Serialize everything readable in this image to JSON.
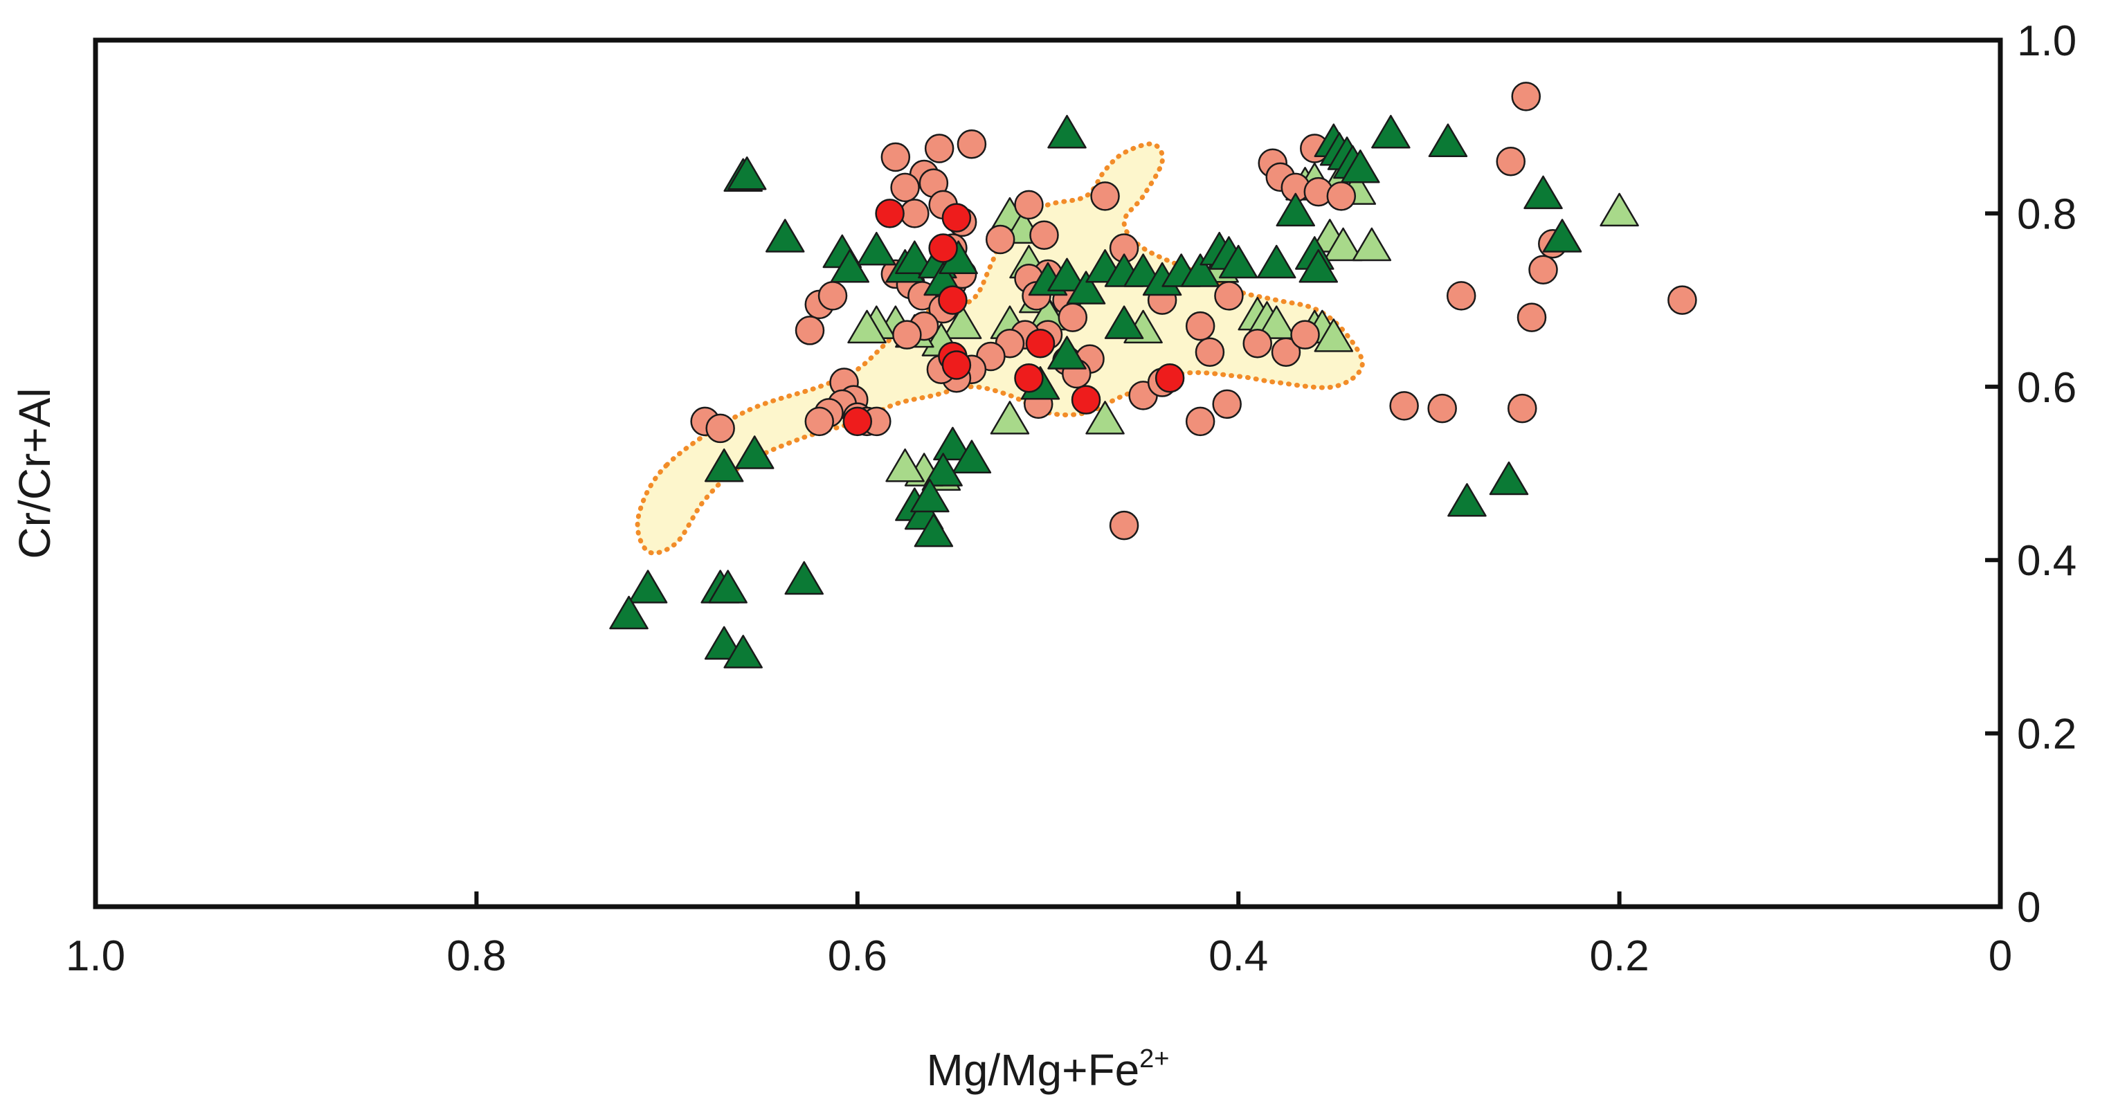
{
  "chart_data": {
    "type": "scatter",
    "title": "",
    "xlabel": {
      "base": "Mg/Mg+Fe",
      "sup": "2+"
    },
    "ylabel": "Cr/Cr+Al",
    "xlim": [
      1.0,
      0.0
    ],
    "ylim": [
      0.0,
      1.0
    ],
    "x_ticks": [
      1.0,
      0.8,
      0.6,
      0.4,
      0.2,
      0.0
    ],
    "x_tick_labels": [
      "1.0",
      "0.8",
      "0.6",
      "0.4",
      "0.2",
      "0"
    ],
    "y_ticks": [
      0.0,
      0.2,
      0.4,
      0.6,
      0.8,
      1.0
    ],
    "y_tick_labels": [
      "0",
      "0.2",
      "0.4",
      "0.6",
      "0.8",
      "1.0"
    ],
    "y_axis_position": "right",
    "grid": false,
    "colors": {
      "field_fill": "#fdf6cc",
      "field_stroke": "#f28c28",
      "dark_triangle": "#0b7a35",
      "light_triangle": "#a8d98a",
      "salmon_circle": "#f0907a",
      "red_circle": "#ee1c1c",
      "marker_stroke": "#1a1a1a",
      "axis": "#111111"
    },
    "field_outline": [
      [
        0.7,
        0.51
      ],
      [
        0.66,
        0.57
      ],
      [
        0.62,
        0.6
      ],
      [
        0.6,
        0.62
      ],
      [
        0.58,
        0.66
      ],
      [
        0.56,
        0.69
      ],
      [
        0.54,
        0.7
      ],
      [
        0.53,
        0.74
      ],
      [
        0.52,
        0.79
      ],
      [
        0.5,
        0.81
      ],
      [
        0.48,
        0.82
      ],
      [
        0.47,
        0.85
      ],
      [
        0.46,
        0.87
      ],
      [
        0.445,
        0.88
      ],
      [
        0.44,
        0.86
      ],
      [
        0.45,
        0.82
      ],
      [
        0.46,
        0.79
      ],
      [
        0.45,
        0.76
      ],
      [
        0.42,
        0.73
      ],
      [
        0.4,
        0.71
      ],
      [
        0.38,
        0.7
      ],
      [
        0.36,
        0.69
      ],
      [
        0.345,
        0.665
      ],
      [
        0.335,
        0.625
      ],
      [
        0.35,
        0.6
      ],
      [
        0.38,
        0.605
      ],
      [
        0.4,
        0.612
      ],
      [
        0.43,
        0.615
      ],
      [
        0.46,
        0.59
      ],
      [
        0.48,
        0.57
      ],
      [
        0.5,
        0.57
      ],
      [
        0.52,
        0.59
      ],
      [
        0.54,
        0.6
      ],
      [
        0.56,
        0.59
      ],
      [
        0.58,
        0.58
      ],
      [
        0.6,
        0.56
      ],
      [
        0.63,
        0.54
      ],
      [
        0.66,
        0.51
      ],
      [
        0.68,
        0.47
      ],
      [
        0.695,
        0.42
      ],
      [
        0.71,
        0.41
      ],
      [
        0.715,
        0.45
      ]
    ],
    "series": [
      {
        "name": "dark-triangles",
        "marker": "triangle",
        "color": "#0b7a35",
        "points": [
          [
            0.66,
            0.84
          ],
          [
            0.658,
            0.842
          ],
          [
            0.638,
            0.77
          ],
          [
            0.608,
            0.752
          ],
          [
            0.59,
            0.755
          ],
          [
            0.604,
            0.735
          ],
          [
            0.575,
            0.735
          ],
          [
            0.57,
            0.745
          ],
          [
            0.558,
            0.74
          ],
          [
            0.555,
            0.72
          ],
          [
            0.547,
            0.745
          ],
          [
            0.49,
            0.89
          ],
          [
            0.5,
            0.72
          ],
          [
            0.49,
            0.725
          ],
          [
            0.48,
            0.71
          ],
          [
            0.47,
            0.735
          ],
          [
            0.46,
            0.73
          ],
          [
            0.45,
            0.73
          ],
          [
            0.44,
            0.72
          ],
          [
            0.43,
            0.73
          ],
          [
            0.42,
            0.73
          ],
          [
            0.41,
            0.755
          ],
          [
            0.405,
            0.75
          ],
          [
            0.4,
            0.74
          ],
          [
            0.38,
            0.74
          ],
          [
            0.36,
            0.75
          ],
          [
            0.358,
            0.735
          ],
          [
            0.37,
            0.8
          ],
          [
            0.35,
            0.88
          ],
          [
            0.347,
            0.87
          ],
          [
            0.343,
            0.865
          ],
          [
            0.34,
            0.855
          ],
          [
            0.336,
            0.85
          ],
          [
            0.32,
            0.89
          ],
          [
            0.29,
            0.88
          ],
          [
            0.24,
            0.82
          ],
          [
            0.23,
            0.77
          ],
          [
            0.504,
            0.6
          ],
          [
            0.46,
            0.67
          ],
          [
            0.49,
            0.635
          ],
          [
            0.55,
            0.53
          ],
          [
            0.54,
            0.515
          ],
          [
            0.555,
            0.5
          ],
          [
            0.57,
            0.46
          ],
          [
            0.565,
            0.45
          ],
          [
            0.56,
            0.43
          ],
          [
            0.562,
            0.47
          ],
          [
            0.67,
            0.505
          ],
          [
            0.654,
            0.52
          ],
          [
            0.628,
            0.375
          ],
          [
            0.672,
            0.365
          ],
          [
            0.668,
            0.365
          ],
          [
            0.71,
            0.365
          ],
          [
            0.72,
            0.335
          ],
          [
            0.67,
            0.3
          ],
          [
            0.66,
            0.29
          ],
          [
            0.28,
            0.465
          ],
          [
            0.258,
            0.49
          ]
        ]
      },
      {
        "name": "light-triangles",
        "marker": "triangle",
        "color": "#a8d98a",
        "points": [
          [
            0.52,
            0.795
          ],
          [
            0.513,
            0.78
          ],
          [
            0.51,
            0.74
          ],
          [
            0.505,
            0.7
          ],
          [
            0.5,
            0.68
          ],
          [
            0.52,
            0.67
          ],
          [
            0.545,
            0.67
          ],
          [
            0.556,
            0.65
          ],
          [
            0.57,
            0.66
          ],
          [
            0.58,
            0.67
          ],
          [
            0.59,
            0.67
          ],
          [
            0.595,
            0.665
          ],
          [
            0.52,
            0.56
          ],
          [
            0.47,
            0.56
          ],
          [
            0.45,
            0.665
          ],
          [
            0.41,
            0.735
          ],
          [
            0.39,
            0.68
          ],
          [
            0.385,
            0.675
          ],
          [
            0.38,
            0.67
          ],
          [
            0.36,
            0.665
          ],
          [
            0.356,
            0.665
          ],
          [
            0.35,
            0.655
          ],
          [
            0.352,
            0.77
          ],
          [
            0.345,
            0.76
          ],
          [
            0.33,
            0.76
          ],
          [
            0.2,
            0.8
          ],
          [
            0.365,
            0.83
          ],
          [
            0.36,
            0.835
          ],
          [
            0.348,
            0.83
          ],
          [
            0.338,
            0.825
          ],
          [
            0.556,
            0.495
          ],
          [
            0.565,
            0.5
          ],
          [
            0.575,
            0.505
          ]
        ]
      },
      {
        "name": "salmon-circles",
        "marker": "circle",
        "color": "#f0907a",
        "points": [
          [
            0.58,
            0.865
          ],
          [
            0.565,
            0.845
          ],
          [
            0.557,
            0.875
          ],
          [
            0.54,
            0.88
          ],
          [
            0.575,
            0.83
          ],
          [
            0.56,
            0.835
          ],
          [
            0.555,
            0.81
          ],
          [
            0.57,
            0.8
          ],
          [
            0.545,
            0.79
          ],
          [
            0.51,
            0.81
          ],
          [
            0.525,
            0.77
          ],
          [
            0.502,
            0.775
          ],
          [
            0.47,
            0.82
          ],
          [
            0.55,
            0.76
          ],
          [
            0.58,
            0.73
          ],
          [
            0.572,
            0.718
          ],
          [
            0.566,
            0.705
          ],
          [
            0.55,
            0.72
          ],
          [
            0.545,
            0.73
          ],
          [
            0.555,
            0.69
          ],
          [
            0.5,
            0.73
          ],
          [
            0.51,
            0.725
          ],
          [
            0.506,
            0.705
          ],
          [
            0.49,
            0.7
          ],
          [
            0.487,
            0.68
          ],
          [
            0.5,
            0.66
          ],
          [
            0.512,
            0.66
          ],
          [
            0.52,
            0.65
          ],
          [
            0.53,
            0.635
          ],
          [
            0.54,
            0.62
          ],
          [
            0.548,
            0.61
          ],
          [
            0.556,
            0.62
          ],
          [
            0.565,
            0.67
          ],
          [
            0.574,
            0.66
          ],
          [
            0.62,
            0.695
          ],
          [
            0.613,
            0.705
          ],
          [
            0.625,
            0.665
          ],
          [
            0.607,
            0.605
          ],
          [
            0.602,
            0.585
          ],
          [
            0.608,
            0.58
          ],
          [
            0.615,
            0.57
          ],
          [
            0.62,
            0.56
          ],
          [
            0.6,
            0.565
          ],
          [
            0.595,
            0.56
          ],
          [
            0.59,
            0.56
          ],
          [
            0.68,
            0.56
          ],
          [
            0.672,
            0.552
          ],
          [
            0.46,
            0.76
          ],
          [
            0.44,
            0.7
          ],
          [
            0.42,
            0.67
          ],
          [
            0.405,
            0.705
          ],
          [
            0.415,
            0.64
          ],
          [
            0.39,
            0.65
          ],
          [
            0.375,
            0.64
          ],
          [
            0.365,
            0.66
          ],
          [
            0.382,
            0.858
          ],
          [
            0.378,
            0.842
          ],
          [
            0.37,
            0.83
          ],
          [
            0.36,
            0.875
          ],
          [
            0.358,
            0.825
          ],
          [
            0.346,
            0.82
          ],
          [
            0.45,
            0.59
          ],
          [
            0.44,
            0.605
          ],
          [
            0.42,
            0.56
          ],
          [
            0.406,
            0.58
          ],
          [
            0.46,
            0.44
          ],
          [
            0.49,
            0.63
          ],
          [
            0.478,
            0.632
          ],
          [
            0.505,
            0.58
          ],
          [
            0.485,
            0.615
          ],
          [
            0.283,
            0.705
          ],
          [
            0.249,
            0.935
          ],
          [
            0.257,
            0.86
          ],
          [
            0.246,
            0.68
          ],
          [
            0.24,
            0.735
          ],
          [
            0.235,
            0.765
          ],
          [
            0.167,
            0.7
          ],
          [
            0.313,
            0.578
          ],
          [
            0.293,
            0.575
          ],
          [
            0.251,
            0.575
          ]
        ]
      },
      {
        "name": "red-circles",
        "marker": "circle",
        "color": "#ee1c1c",
        "points": [
          [
            0.583,
            0.8
          ],
          [
            0.548,
            0.795
          ],
          [
            0.555,
            0.76
          ],
          [
            0.55,
            0.7
          ],
          [
            0.55,
            0.635
          ],
          [
            0.548,
            0.625
          ],
          [
            0.504,
            0.65
          ],
          [
            0.51,
            0.61
          ],
          [
            0.48,
            0.585
          ],
          [
            0.436,
            0.61
          ],
          [
            0.6,
            0.56
          ]
        ]
      }
    ]
  }
}
